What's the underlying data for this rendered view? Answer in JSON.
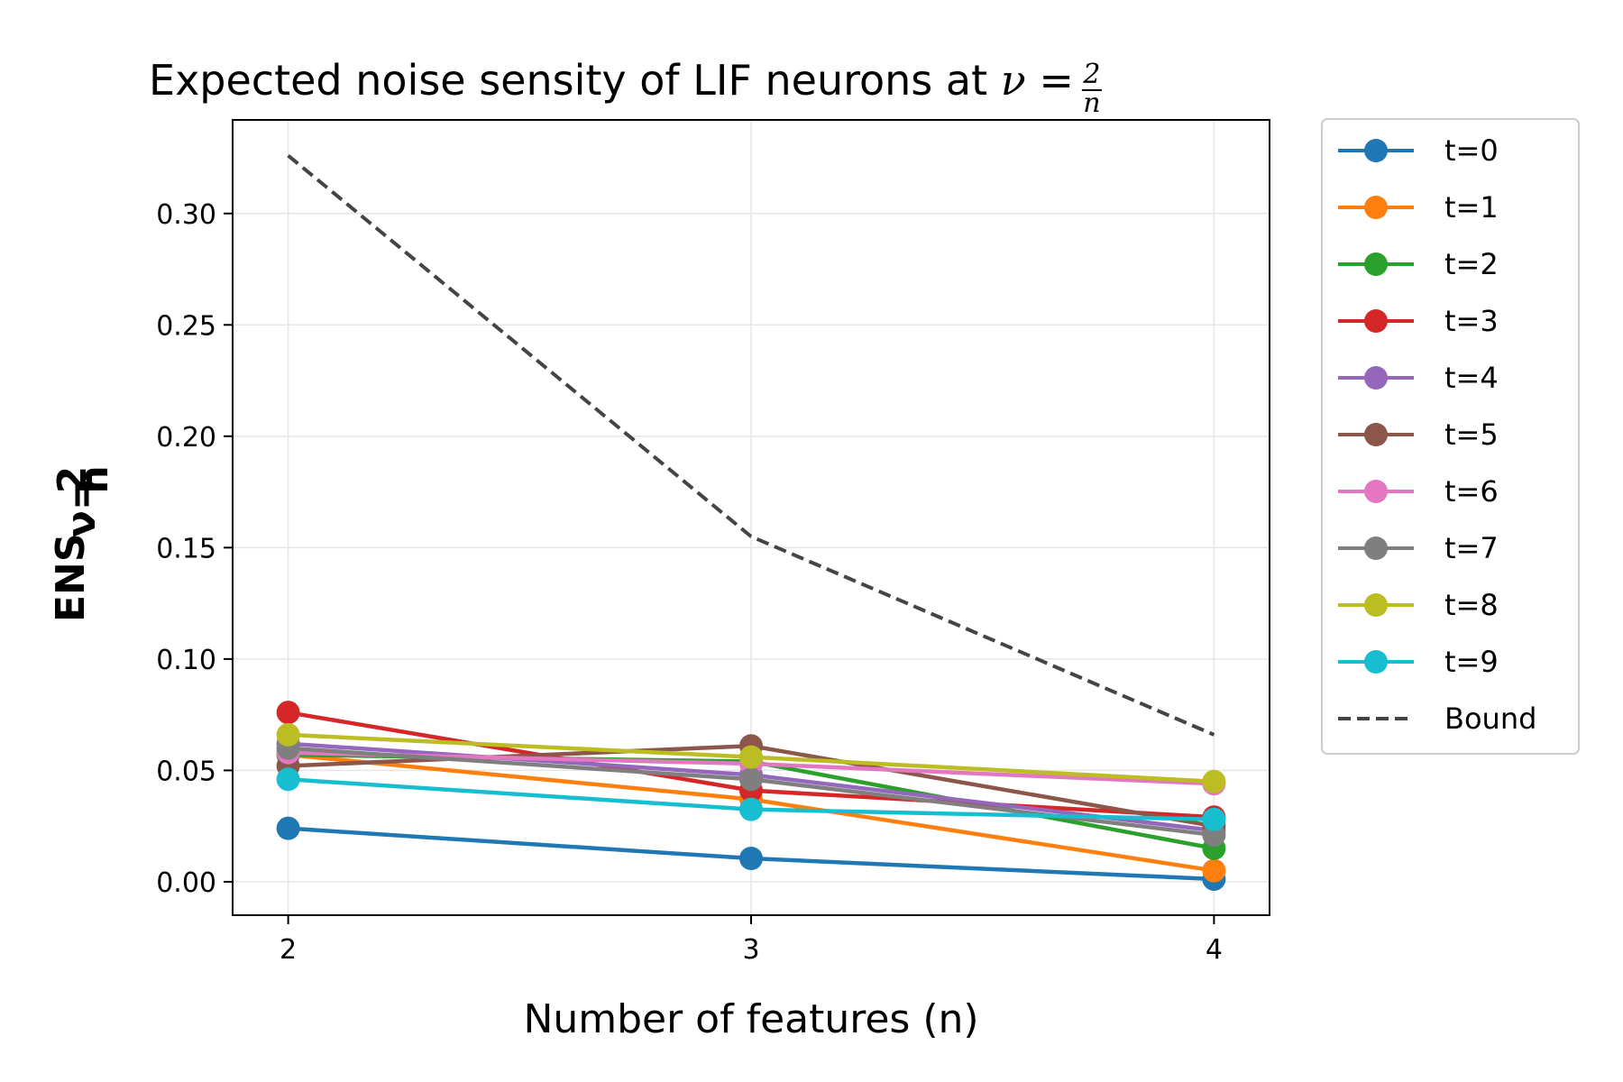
{
  "chart_data": {
    "type": "line",
    "title": "Expected noise sensity of LIF neurons at",
    "title_math": {
      "lhs": "ν",
      "eq": "=",
      "numerator": "2",
      "denominator": "n"
    },
    "xlabel": "Number of features (n)",
    "ylabel": "ENS",
    "ylabel_sub": {
      "lhs": "ν",
      "eq": "=",
      "numerator": "2",
      "denominator": "n"
    },
    "x": [
      2,
      3,
      4
    ],
    "xlim": [
      1.88,
      4.12
    ],
    "ylim": [
      -0.015,
      0.342
    ],
    "xticks": [
      2,
      3,
      4
    ],
    "xtick_labels": [
      "2",
      "3",
      "4"
    ],
    "yticks": [
      0.0,
      0.05,
      0.1,
      0.15,
      0.2,
      0.25,
      0.3
    ],
    "ytick_labels": [
      "0.00",
      "0.05",
      "0.10",
      "0.15",
      "0.20",
      "0.25",
      "0.30"
    ],
    "grid": true,
    "legend_position": "outside-right",
    "series": [
      {
        "name": "t=0",
        "color": "#1f77b4",
        "style": "solid-marker",
        "values": [
          0.024,
          0.0105,
          0.0012
        ]
      },
      {
        "name": "t=1",
        "color": "#ff7f0e",
        "style": "solid-marker",
        "values": [
          0.057,
          0.037,
          0.005
        ]
      },
      {
        "name": "t=2",
        "color": "#2ca02c",
        "style": "solid-marker",
        "values": [
          0.057,
          0.054,
          0.015
        ]
      },
      {
        "name": "t=3",
        "color": "#d62728",
        "style": "solid-marker",
        "values": [
          0.076,
          0.041,
          0.029
        ]
      },
      {
        "name": "t=4",
        "color": "#9467bd",
        "style": "solid-marker",
        "values": [
          0.062,
          0.048,
          0.023
        ]
      },
      {
        "name": "t=5",
        "color": "#8c564b",
        "style": "solid-marker",
        "values": [
          0.052,
          0.061,
          0.025
        ]
      },
      {
        "name": "t=6",
        "color": "#e377c2",
        "style": "solid-marker",
        "values": [
          0.058,
          0.053,
          0.044
        ]
      },
      {
        "name": "t=7",
        "color": "#7f7f7f",
        "style": "solid-marker",
        "values": [
          0.06,
          0.046,
          0.021
        ]
      },
      {
        "name": "t=8",
        "color": "#bcbd22",
        "style": "solid-marker",
        "values": [
          0.066,
          0.056,
          0.045
        ]
      },
      {
        "name": "t=9",
        "color": "#17becf",
        "style": "solid-marker",
        "values": [
          0.046,
          0.0325,
          0.028
        ]
      },
      {
        "name": "Bound",
        "color": "#444444",
        "style": "dashed",
        "values": [
          0.326,
          0.155,
          0.066
        ]
      }
    ]
  }
}
